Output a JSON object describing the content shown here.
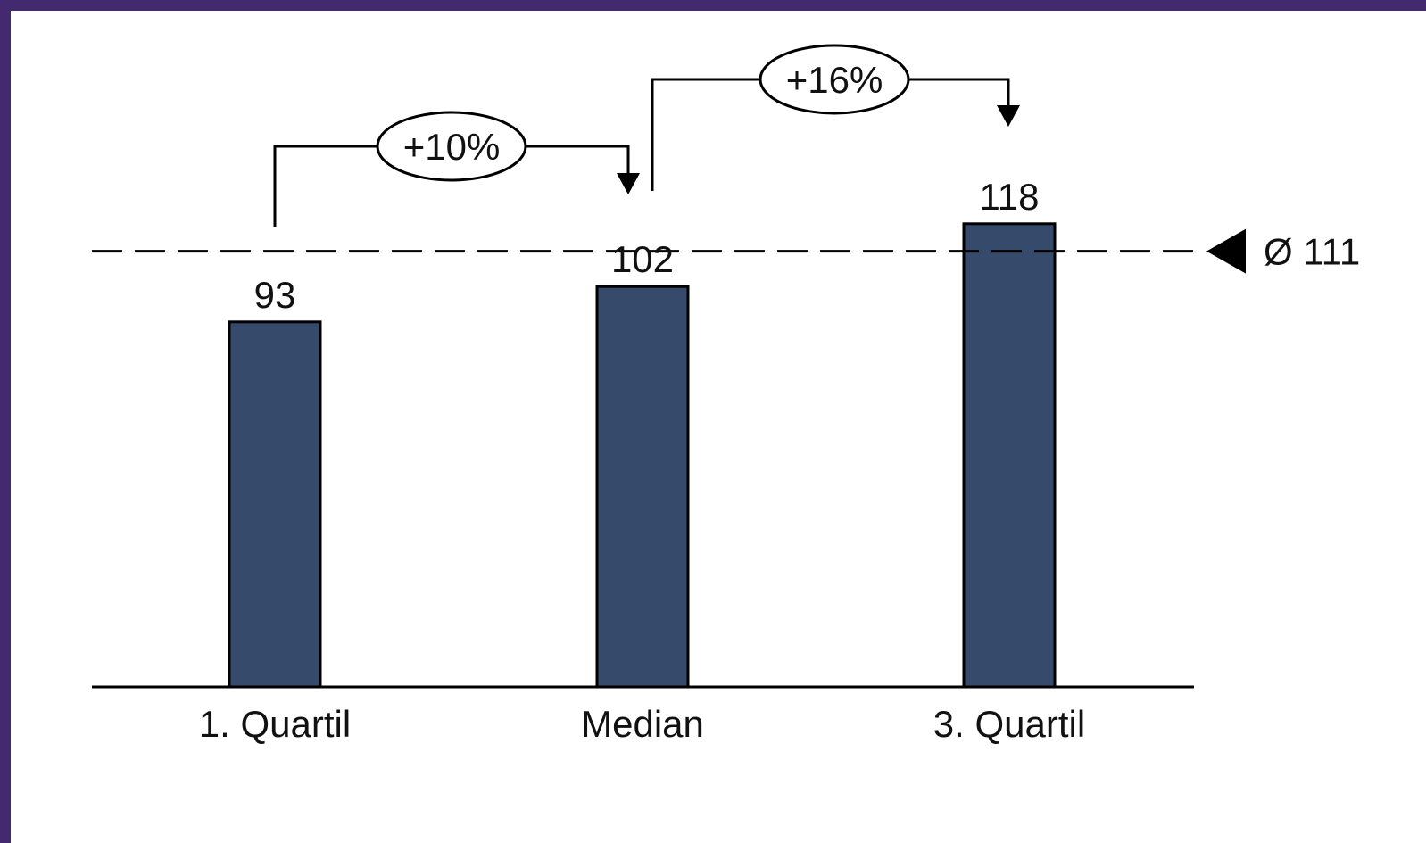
{
  "colors": {
    "bar": "#364a6b",
    "frame": "#432a70",
    "line": "#000000"
  },
  "chart_data": {
    "type": "bar",
    "categories": [
      "1. Quartil",
      "Median",
      "3. Quartil"
    ],
    "values": [
      93,
      102,
      118
    ],
    "value_labels": [
      "93",
      "102",
      "118"
    ],
    "average": {
      "value": 111,
      "label": "Ø 111"
    },
    "changes": [
      {
        "from": "1. Quartil",
        "to": "Median",
        "label": "+10%"
      },
      {
        "from": "Median",
        "to": "3. Quartil",
        "label": "+16%"
      }
    ],
    "title": "",
    "xlabel": "",
    "ylabel": "",
    "grid": false
  }
}
